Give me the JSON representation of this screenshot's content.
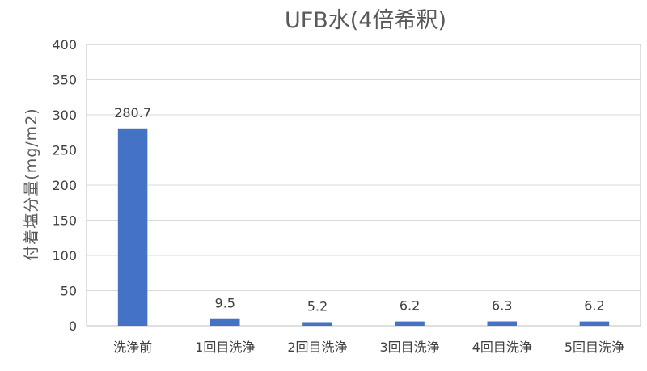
{
  "chart_data": {
    "type": "bar",
    "title": "UFB水(4倍希釈)",
    "xlabel": "",
    "ylabel": "付着塩分量(mg/m2)",
    "ylim": [
      0,
      400
    ],
    "yticks": [
      0,
      50,
      100,
      150,
      200,
      250,
      300,
      350,
      400
    ],
    "categories": [
      "洗浄前",
      "1回目洗浄",
      "2回目洗浄",
      "3回目洗浄",
      "4回目洗浄",
      "5回目洗浄"
    ],
    "values": [
      280.7,
      9.5,
      5.2,
      6.2,
      6.3,
      6.2
    ],
    "data_labels": [
      "280.7",
      "9.5",
      "5.2",
      "6.2",
      "6.3",
      "6.2"
    ],
    "grid": true,
    "legend": "none",
    "bar_color": "#4472c4"
  }
}
